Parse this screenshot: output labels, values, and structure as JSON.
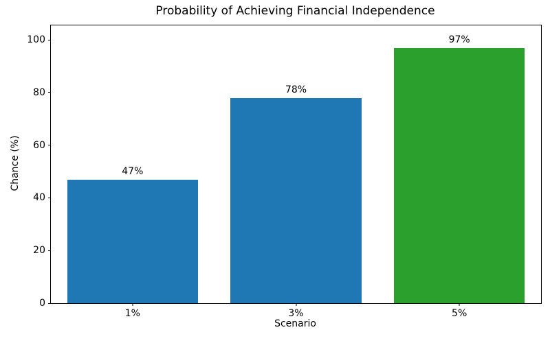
{
  "chart_data": {
    "type": "bar",
    "title": "Probability of Achieving Financial Independence",
    "xlabel": "Scenario",
    "ylabel": "Chance (%)",
    "categories": [
      "1%",
      "3%",
      "5%"
    ],
    "values": [
      47,
      78,
      97
    ],
    "bar_labels": [
      "47%",
      "78%",
      "97%"
    ],
    "bar_colors": [
      "#1f77b4",
      "#1f77b4",
      "#2ca02c"
    ],
    "yticks": [
      0,
      20,
      40,
      60,
      80,
      100
    ],
    "ylim": [
      0,
      105.5
    ],
    "grid": false,
    "legend": "none",
    "bar_width_fraction": 0.8,
    "text_color": "#000000",
    "background_color": "#ffffff"
  }
}
